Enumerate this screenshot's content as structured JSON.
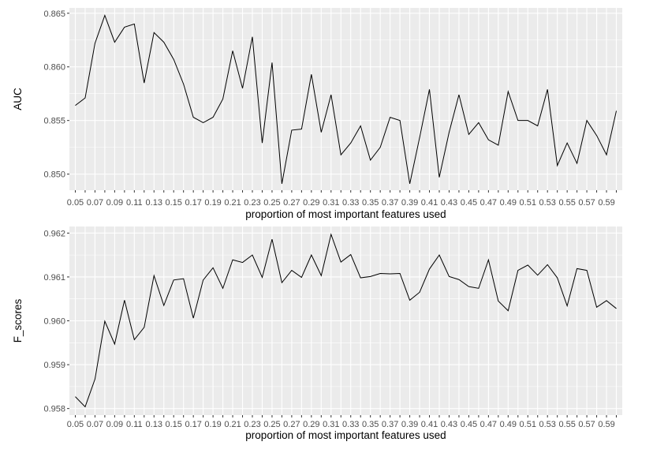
{
  "chart_data": [
    {
      "type": "line",
      "xlabel": "proportion of most important features used",
      "ylabel": "AUC",
      "x_ticks": [
        "0.05",
        "0.07",
        "0.09",
        "0.11",
        "0.13",
        "0.15",
        "0.17",
        "0.19",
        "0.21",
        "0.23",
        "0.25",
        "0.27",
        "0.29",
        "0.31",
        "0.33",
        "0.35",
        "0.37",
        "0.39",
        "0.41",
        "0.43",
        "0.45",
        "0.47",
        "0.49",
        "0.51",
        "0.53",
        "0.55",
        "0.57",
        "0.59"
      ],
      "y_ticks": [
        "0.850",
        "0.855",
        "0.860",
        "0.865"
      ],
      "ylim": [
        0.8485,
        0.8655
      ],
      "grid": true,
      "background": "#ebebeb",
      "line_color": "#000000",
      "x": [
        0.05,
        0.06,
        0.07,
        0.08,
        0.09,
        0.1,
        0.11,
        0.12,
        0.13,
        0.14,
        0.15,
        0.16,
        0.17,
        0.18,
        0.19,
        0.2,
        0.21,
        0.22,
        0.23,
        0.24,
        0.25,
        0.26,
        0.27,
        0.28,
        0.29,
        0.3,
        0.31,
        0.32,
        0.33,
        0.34,
        0.35,
        0.36,
        0.37,
        0.38,
        0.39,
        0.4,
        0.41,
        0.42,
        0.43,
        0.44,
        0.45,
        0.46,
        0.47,
        0.48,
        0.49,
        0.5,
        0.51,
        0.52,
        0.53,
        0.54,
        0.55,
        0.56,
        0.57,
        0.58,
        0.59,
        0.6
      ],
      "values": [
        0.8564,
        0.8571,
        0.8622,
        0.8648,
        0.8623,
        0.8637,
        0.864,
        0.8585,
        0.8632,
        0.8623,
        0.8607,
        0.8584,
        0.8553,
        0.8548,
        0.8553,
        0.857,
        0.8615,
        0.858,
        0.8628,
        0.8529,
        0.8604,
        0.8491,
        0.8541,
        0.8542,
        0.8593,
        0.8539,
        0.8574,
        0.8518,
        0.8529,
        0.8545,
        0.8513,
        0.8525,
        0.8553,
        0.855,
        0.8491,
        0.8534,
        0.8579,
        0.8497,
        0.8539,
        0.8574,
        0.8537,
        0.8548,
        0.8532,
        0.8527,
        0.8577,
        0.855,
        0.855,
        0.8545,
        0.8579,
        0.8508,
        0.8529,
        0.851,
        0.855,
        0.8536,
        0.8518,
        0.8559
      ]
    },
    {
      "type": "line",
      "xlabel": "proportion of most important features used",
      "ylabel": "F_scores",
      "x_ticks": [
        "0.05",
        "0.07",
        "0.09",
        "0.11",
        "0.13",
        "0.15",
        "0.17",
        "0.19",
        "0.21",
        "0.23",
        "0.25",
        "0.27",
        "0.29",
        "0.31",
        "0.33",
        "0.35",
        "0.37",
        "0.39",
        "0.41",
        "0.43",
        "0.45",
        "0.47",
        "0.49",
        "0.51",
        "0.53",
        "0.55",
        "0.57",
        "0.59"
      ],
      "y_ticks": [
        "0.958",
        "0.959",
        "0.960",
        "0.961",
        "0.962"
      ],
      "ylim": [
        0.95785,
        0.96215
      ],
      "grid": true,
      "background": "#ebebeb",
      "line_color": "#000000",
      "x": [
        0.05,
        0.06,
        0.07,
        0.08,
        0.09,
        0.1,
        0.11,
        0.12,
        0.13,
        0.14,
        0.15,
        0.16,
        0.17,
        0.18,
        0.19,
        0.2,
        0.21,
        0.22,
        0.23,
        0.24,
        0.25,
        0.26,
        0.27,
        0.28,
        0.29,
        0.3,
        0.31,
        0.32,
        0.33,
        0.34,
        0.35,
        0.36,
        0.37,
        0.38,
        0.39,
        0.4,
        0.41,
        0.42,
        0.43,
        0.44,
        0.45,
        0.46,
        0.47,
        0.48,
        0.49,
        0.5,
        0.51,
        0.52,
        0.53,
        0.54,
        0.55,
        0.56,
        0.57,
        0.58,
        0.59,
        0.6
      ],
      "values": [
        0.95827,
        0.95804,
        0.95867,
        0.95999,
        0.95947,
        0.96047,
        0.95957,
        0.95985,
        0.96103,
        0.96035,
        0.96093,
        0.96096,
        0.96006,
        0.96093,
        0.96121,
        0.96074,
        0.96139,
        0.96133,
        0.9615,
        0.96099,
        0.96186,
        0.96087,
        0.96115,
        0.96099,
        0.9615,
        0.96103,
        0.96197,
        0.96134,
        0.96151,
        0.96098,
        0.96101,
        0.96108,
        0.96107,
        0.96108,
        0.96047,
        0.96065,
        0.96118,
        0.9615,
        0.96101,
        0.96094,
        0.96078,
        0.96074,
        0.96139,
        0.96045,
        0.96023,
        0.96115,
        0.96127,
        0.96104,
        0.96128,
        0.96098,
        0.96034,
        0.96119,
        0.96115,
        0.96031,
        0.96046,
        0.96028
      ]
    }
  ]
}
